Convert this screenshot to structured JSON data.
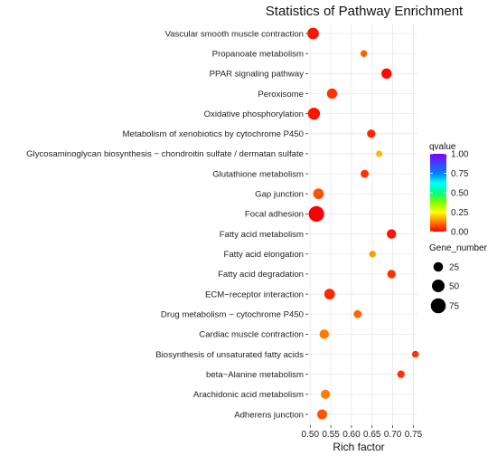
{
  "chart_data": {
    "type": "scatter",
    "title": "Statistics of Pathway Enrichment",
    "xlabel": "Rich factor",
    "ylabel": "",
    "xlim": [
      0.495,
      0.76
    ],
    "xticks": [
      "0.50",
      "0.55",
      "0.60",
      "0.65",
      "0.70",
      "0.75"
    ],
    "xtick_values": [
      0.5,
      0.55,
      0.6,
      0.65,
      0.7,
      0.75
    ],
    "grid": true,
    "categories": [
      "Vascular smooth muscle contraction",
      "Propanoate metabolism",
      "PPAR signaling pathway",
      "Peroxisome",
      "Oxidative phosphorylation",
      "Metabolism of xenobiotics by cytochrome P450",
      "Glycosaminoglycan biosynthesis − chondroitin sulfate / dermatan sulfate",
      "Glutathione metabolism",
      "Gap junction",
      "Focal adhesion",
      "Fatty acid metabolism",
      "Fatty acid elongation",
      "Fatty acid degradation",
      "ECM−receptor interaction",
      "Drug metabolism − cytochrome P450",
      "Cardiac muscle contraction",
      "Biosynthesis of unsaturated fatty acids",
      "beta−Alanine metabolism",
      "Arachidonic acid metabolism",
      "Adherens junction"
    ],
    "points": [
      {
        "rich_factor": 0.507,
        "gene_number": 40,
        "qvalue": 0.02
      },
      {
        "rich_factor": 0.63,
        "gene_number": 10,
        "qvalue": 0.1
      },
      {
        "rich_factor": 0.685,
        "gene_number": 30,
        "qvalue": 0.01
      },
      {
        "rich_factor": 0.553,
        "gene_number": 30,
        "qvalue": 0.05
      },
      {
        "rich_factor": 0.509,
        "gene_number": 45,
        "qvalue": 0.02
      },
      {
        "rich_factor": 0.648,
        "gene_number": 18,
        "qvalue": 0.04
      },
      {
        "rich_factor": 0.667,
        "gene_number": 8,
        "qvalue": 0.18
      },
      {
        "rich_factor": 0.632,
        "gene_number": 16,
        "qvalue": 0.05
      },
      {
        "rich_factor": 0.52,
        "gene_number": 33,
        "qvalue": 0.08
      },
      {
        "rich_factor": 0.515,
        "gene_number": 82,
        "qvalue": 0.0
      },
      {
        "rich_factor": 0.697,
        "gene_number": 24,
        "qvalue": 0.02
      },
      {
        "rich_factor": 0.651,
        "gene_number": 9,
        "qvalue": 0.15
      },
      {
        "rich_factor": 0.697,
        "gene_number": 18,
        "qvalue": 0.05
      },
      {
        "rich_factor": 0.547,
        "gene_number": 33,
        "qvalue": 0.04
      },
      {
        "rich_factor": 0.615,
        "gene_number": 16,
        "qvalue": 0.1
      },
      {
        "rich_factor": 0.534,
        "gene_number": 24,
        "qvalue": 0.12
      },
      {
        "rich_factor": 0.755,
        "gene_number": 10,
        "qvalue": 0.05
      },
      {
        "rich_factor": 0.72,
        "gene_number": 13,
        "qvalue": 0.05
      },
      {
        "rich_factor": 0.537,
        "gene_number": 22,
        "qvalue": 0.12
      },
      {
        "rich_factor": 0.529,
        "gene_number": 28,
        "qvalue": 0.08
      }
    ],
    "color_legend": {
      "title": "qvalue",
      "range": [
        0,
        1
      ],
      "ticks": [
        "1.00",
        "0.75",
        "0.50",
        "0.25",
        "0.00"
      ],
      "tick_values": [
        1.0,
        0.75,
        0.5,
        0.25,
        0.0
      ],
      "colors_low_to_high": [
        "#ff0000",
        "#ff8000",
        "#ffff00",
        "#80ff00",
        "#00ff80",
        "#00ffff",
        "#0080ff",
        "#4040ff",
        "#8000ff"
      ]
    },
    "size_legend": {
      "title": "Gene_number",
      "labels": [
        "25",
        "50",
        "75"
      ],
      "values": [
        25,
        50,
        75
      ]
    },
    "legend_position": "right",
    "background": "#ffffff",
    "grid_color": "#e8e8e8"
  }
}
